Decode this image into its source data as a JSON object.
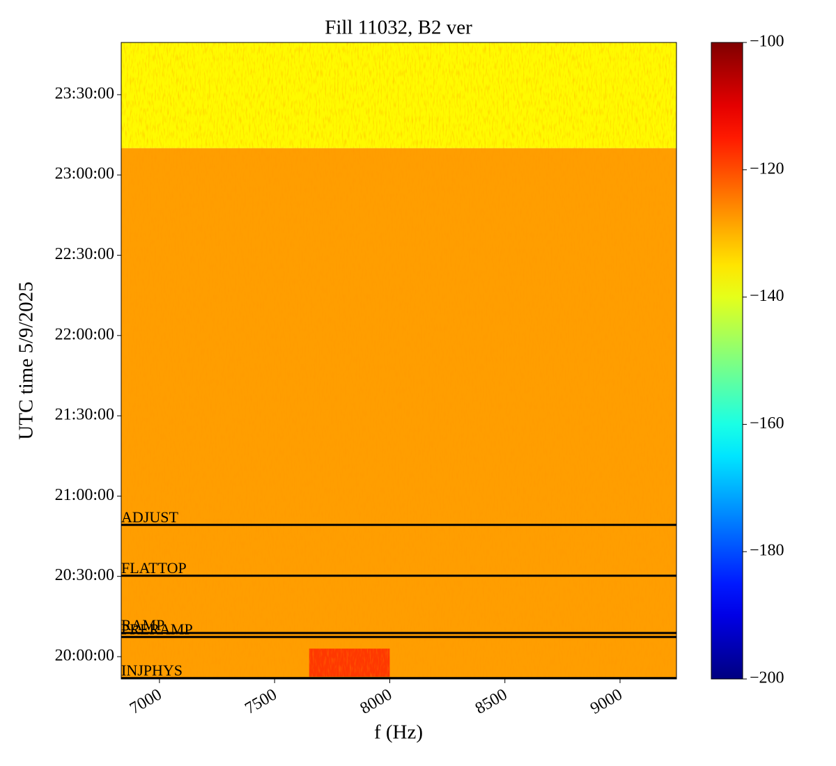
{
  "chart_data": {
    "type": "spectrogram",
    "title": "Fill 11032, B2 ver",
    "xlabel": "f (Hz)",
    "ylabel": "UTC time 5/9/2025",
    "xlim": [
      6834,
      9245
    ],
    "xticks": [
      7000,
      7500,
      8000,
      8500,
      9000
    ],
    "ylim": [
      "19:51:40",
      "23:49:30"
    ],
    "yticks": [
      "20:00:00",
      "20:30:00",
      "21:00:00",
      "21:30:00",
      "22:00:00",
      "22:30:00",
      "23:00:00",
      "23:30:00"
    ],
    "colormap": "jet",
    "clim": [
      -200,
      -100
    ],
    "cticks": [
      {
        "value": -200,
        "label": "−200"
      },
      {
        "value": -180,
        "label": "−180"
      },
      {
        "value": -160,
        "label": "−160"
      },
      {
        "value": -140,
        "label": "−140"
      },
      {
        "value": -120,
        "label": "−120"
      },
      {
        "value": -100,
        "label": "−100"
      }
    ],
    "cells": [
      {
        "x": [
          6834,
          9245
        ],
        "y": [
          "23:10:00",
          "23:49:30"
        ],
        "value": -137
      },
      {
        "x": [
          6834,
          9245
        ],
        "y": [
          "19:51:40",
          "23:10:00"
        ],
        "value": -128
      },
      {
        "x": [
          7650,
          8000
        ],
        "y": [
          "19:52:30",
          "20:03:00"
        ],
        "value": -118
      }
    ],
    "events": [
      {
        "label": "ADJUST",
        "time": "20:49:15"
      },
      {
        "label": "FLATTOP",
        "time": "20:30:15"
      },
      {
        "label": "RAMP",
        "time": "20:08:50"
      },
      {
        "label": "PRERAMP",
        "time": "20:07:20"
      },
      {
        "label": "INJPHYS",
        "time": "19:52:00"
      }
    ],
    "event_color": "#000000"
  }
}
